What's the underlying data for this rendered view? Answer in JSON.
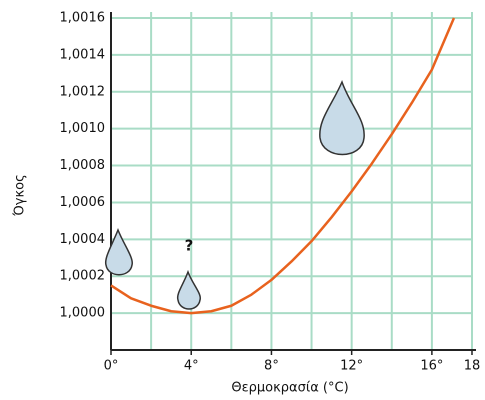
{
  "chart_data": {
    "type": "line",
    "x_label": "Θερμοκρασία (°C)",
    "y_label": "Όγκος",
    "annotation": "?",
    "xlim": [
      0,
      18
    ],
    "ylim": [
      0.9998,
      1.0016
    ],
    "xticks": [
      {
        "value": 0,
        "label": "0°"
      },
      {
        "value": 4,
        "label": "4°"
      },
      {
        "value": 8,
        "label": "8°"
      },
      {
        "value": 12,
        "label": "12°"
      },
      {
        "value": 16,
        "label": "16°"
      },
      18
    ],
    "x_grid": [
      2,
      4,
      6,
      8,
      10,
      12,
      14,
      16,
      18
    ],
    "yticks": [
      {
        "value": 1.0,
        "label": "1,0000"
      },
      {
        "value": 1.0002,
        "label": "1,0002"
      },
      {
        "value": 1.0004,
        "label": "1,0004"
      },
      {
        "value": 1.0006,
        "label": "1,0006"
      },
      {
        "value": 1.0008,
        "label": "1,0008"
      },
      {
        "value": 1.001,
        "label": "1,0010"
      },
      {
        "value": 1.0012,
        "label": "1,0012"
      },
      {
        "value": 1.0014,
        "label": "1,0014"
      },
      {
        "value": 1.0016,
        "label": "1,0016"
      }
    ],
    "grid": true,
    "grid_color": "#a9dcc6",
    "series": [
      {
        "color": "#e8621e",
        "x": [
          0,
          1,
          2,
          3,
          4,
          5,
          6,
          7,
          8,
          9,
          10,
          11,
          12,
          13,
          14,
          15,
          16,
          17.1
        ],
        "values": [
          1.00015,
          1.00008,
          1.00004,
          1.00001,
          1.0,
          1.00001,
          1.00004,
          1.0001,
          1.00018,
          1.00028,
          1.00039,
          1.00052,
          1.00066,
          1.00081,
          1.00097,
          1.00114,
          1.00132,
          1.0016
        ]
      }
    ]
  }
}
